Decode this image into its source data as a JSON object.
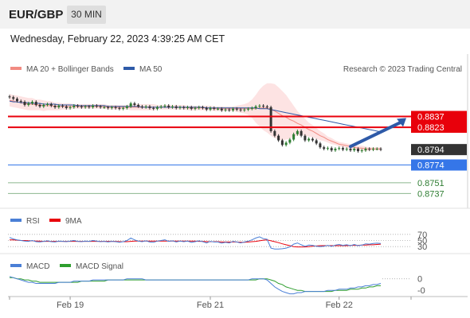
{
  "header": {
    "symbol": "EUR/GBP",
    "timeframe": "30 MIN",
    "datetime": "Wednesday, February 22, 2023 4:39:25 AM CET"
  },
  "credit": "Research © 2023 Trading Central",
  "colors": {
    "bollinger": "#f28b82",
    "bollinger_fill": "#fde3e3",
    "ma50": "#2e5aa8",
    "candle": "#333333",
    "candle_up": "#2e7d32",
    "resistance": "#e8000b",
    "pivot": "#3576e8",
    "support": "#2e7d32",
    "current_bg": "#333333",
    "arrow": "#2e5aa8",
    "rsi": "#4a7fd6",
    "rsi_ma": "#e8000b",
    "macd": "#4a7fd6",
    "macd_signal": "#2e9e2e"
  },
  "chart_data": [
    {
      "type": "line",
      "panel": "price",
      "legend": [
        {
          "name": "MA 20 + Bollinger Bands",
          "color": "#f28b82"
        },
        {
          "name": "MA 50",
          "color": "#2e5aa8"
        }
      ],
      "ylim": [
        0.8725,
        0.8885
      ],
      "x_ticks": [
        "Feb 19",
        "Feb 21",
        "Feb 22"
      ],
      "x_tick_index": [
        16,
        53,
        87
      ],
      "candles_close": [
        0.8862,
        0.886,
        0.8857,
        0.8856,
        0.8852,
        0.8854,
        0.8856,
        0.8852,
        0.885,
        0.8852,
        0.8853,
        0.8851,
        0.8849,
        0.8851,
        0.885,
        0.8848,
        0.8849,
        0.8851,
        0.885,
        0.8849,
        0.885,
        0.8849,
        0.8851,
        0.885,
        0.8849,
        0.8849,
        0.8848,
        0.8849,
        0.8848,
        0.8847,
        0.8848,
        0.885,
        0.8854,
        0.8852,
        0.885,
        0.8849,
        0.885,
        0.8848,
        0.8847,
        0.8849,
        0.885,
        0.8851,
        0.8849,
        0.885,
        0.8848,
        0.8849,
        0.8848,
        0.8849,
        0.8847,
        0.8848,
        0.8849,
        0.8848,
        0.8846,
        0.8848,
        0.8847,
        0.8847,
        0.8845,
        0.8846,
        0.8845,
        0.8847,
        0.8846,
        0.8845,
        0.8846,
        0.8847,
        0.8848,
        0.885,
        0.8851,
        0.885,
        0.8849,
        0.8818,
        0.8812,
        0.8806,
        0.88,
        0.8803,
        0.8807,
        0.8814,
        0.8818,
        0.8812,
        0.8806,
        0.8808,
        0.8806,
        0.8802,
        0.8797,
        0.8795,
        0.8796,
        0.8793,
        0.8795,
        0.8796,
        0.8794,
        0.8795,
        0.8793,
        0.8795,
        0.8792,
        0.8793,
        0.8795,
        0.8794,
        0.8795,
        0.8795,
        0.8794
      ],
      "ma20": [
        0.8858,
        0.8857,
        0.8856,
        0.8855,
        0.8854,
        0.8853,
        0.8853,
        0.8852,
        0.8852,
        0.8851,
        0.8851,
        0.8851,
        0.885,
        0.885,
        0.885,
        0.885,
        0.885,
        0.885,
        0.885,
        0.885,
        0.885,
        0.885,
        0.885,
        0.885,
        0.885,
        0.885,
        0.8849,
        0.8849,
        0.8849,
        0.8849,
        0.8849,
        0.8849,
        0.8849,
        0.8849,
        0.8849,
        0.8849,
        0.8849,
        0.8849,
        0.8849,
        0.8849,
        0.8849,
        0.8849,
        0.8849,
        0.8849,
        0.8849,
        0.8849,
        0.8849,
        0.8848,
        0.8848,
        0.8848,
        0.8848,
        0.8848,
        0.8848,
        0.8848,
        0.8847,
        0.8847,
        0.8847,
        0.8847,
        0.8847,
        0.8847,
        0.8847,
        0.8847,
        0.8847,
        0.8847,
        0.8847,
        0.8847,
        0.8848,
        0.8848,
        0.8848,
        0.8846,
        0.8844,
        0.8841,
        0.8838,
        0.8836,
        0.8833,
        0.8831,
        0.8828,
        0.8826,
        0.8823,
        0.882,
        0.8818,
        0.8815,
        0.8812,
        0.881,
        0.8807,
        0.8805,
        0.8803,
        0.8801,
        0.88,
        0.8799,
        0.8798,
        0.8797,
        0.8796,
        0.8796,
        0.8795,
        0.8795,
        0.8795,
        0.8795,
        0.8795
      ],
      "bb_width": [
        0.0008,
        0.0008,
        0.0008,
        0.0008,
        0.0008,
        0.0008,
        0.0008,
        0.0007,
        0.0007,
        0.0007,
        0.0006,
        0.0006,
        0.0005,
        0.0005,
        0.0004,
        0.0004,
        0.0004,
        0.0003,
        0.0003,
        0.0003,
        0.0003,
        0.0003,
        0.0003,
        0.0003,
        0.0003,
        0.0003,
        0.0003,
        0.0003,
        0.0003,
        0.0003,
        0.0003,
        0.0003,
        0.0004,
        0.0004,
        0.0004,
        0.0004,
        0.0004,
        0.0004,
        0.0004,
        0.0003,
        0.0003,
        0.0003,
        0.0003,
        0.0003,
        0.0003,
        0.0003,
        0.0003,
        0.0003,
        0.0003,
        0.0003,
        0.0003,
        0.0003,
        0.0003,
        0.0003,
        0.0003,
        0.0003,
        0.0003,
        0.0003,
        0.0003,
        0.0003,
        0.0004,
        0.0005,
        0.0006,
        0.0008,
        0.0012,
        0.0018,
        0.0024,
        0.0029,
        0.0032,
        0.0034,
        0.0035,
        0.0034,
        0.0032,
        0.0029,
        0.0025,
        0.002,
        0.0016,
        0.0013,
        0.0011,
        0.0009,
        0.0008,
        0.0007,
        0.0006,
        0.0005,
        0.0004,
        0.0004,
        0.0003,
        0.0003,
        0.0003,
        0.0003,
        0.0003,
        0.0003,
        0.0003,
        0.0003,
        0.0003,
        0.0002,
        0.0002,
        0.0002,
        0.0002
      ],
      "ma50": [
        0.8857,
        0.8856,
        0.8856,
        0.8855,
        0.8855,
        0.8855,
        0.8854,
        0.8854,
        0.8854,
        0.8853,
        0.8853,
        0.8853,
        0.8853,
        0.8852,
        0.8852,
        0.8852,
        0.8852,
        0.8852,
        0.8851,
        0.8851,
        0.8851,
        0.8851,
        0.8851,
        0.8851,
        0.8851,
        0.8851,
        0.885,
        0.885,
        0.885,
        0.885,
        0.885,
        0.885,
        0.885,
        0.885,
        0.885,
        0.8849,
        0.8849,
        0.8849,
        0.8849,
        0.8849,
        0.8849,
        0.8849,
        0.8849,
        0.8849,
        0.8849,
        0.8849,
        0.8849,
        0.8849,
        0.8849,
        0.8849,
        0.8849,
        0.8849,
        0.8848,
        0.8848,
        0.8848,
        0.8848,
        0.8848,
        0.8848,
        0.8848,
        0.8848,
        0.8848,
        0.8848,
        0.8848,
        0.8848,
        0.8848,
        0.8848,
        0.8847,
        0.8847,
        0.8847,
        0.8846,
        0.8845,
        0.8844,
        0.8843,
        0.8842,
        0.8841,
        0.884,
        0.8839,
        0.8838,
        0.8837,
        0.8836,
        0.8835,
        0.8834,
        0.8833,
        0.8832,
        0.8831,
        0.883,
        0.8829,
        0.8828,
        0.8827,
        0.8826,
        0.8825,
        0.8824,
        0.8823,
        0.8822,
        0.8821,
        0.882,
        0.8819,
        0.8818,
        0.8817
      ],
      "levels": [
        {
          "value": 0.8837,
          "label": "0.8837",
          "kind": "resistance"
        },
        {
          "value": 0.8823,
          "label": "0.8823",
          "kind": "resistance"
        },
        {
          "value": 0.8794,
          "label": "0.8794",
          "kind": "current"
        },
        {
          "value": 0.8774,
          "label": "0.8774",
          "kind": "pivot"
        },
        {
          "value": 0.8751,
          "label": "0.8751",
          "kind": "support"
        },
        {
          "value": 0.8737,
          "label": "0.8737",
          "kind": "support"
        }
      ],
      "arrow": {
        "from_index": 90,
        "from_value": 0.8798,
        "to_index": 98,
        "to_value": 0.8835,
        "direction": "up"
      }
    },
    {
      "type": "line",
      "panel": "rsi",
      "legend": [
        {
          "name": "RSI",
          "color": "#4a7fd6"
        },
        {
          "name": "9MA",
          "color": "#e8000b"
        }
      ],
      "ylim": [
        20,
        80
      ],
      "ticks": [
        70,
        50,
        30
      ],
      "tick_labels": [
        "70",
        "50",
        "30"
      ],
      "rsi": [
        60,
        55,
        52,
        50,
        48,
        47,
        50,
        46,
        45,
        47,
        49,
        46,
        45,
        48,
        47,
        46,
        48,
        50,
        47,
        46,
        48,
        47,
        50,
        48,
        46,
        47,
        45,
        47,
        46,
        44,
        46,
        50,
        58,
        52,
        48,
        46,
        49,
        45,
        44,
        48,
        50,
        52,
        47,
        49,
        45,
        48,
        46,
        48,
        44,
        46,
        49,
        46,
        42,
        47,
        45,
        45,
        41,
        44,
        42,
        47,
        45,
        42,
        45,
        48,
        52,
        58,
        62,
        56,
        54,
        25,
        22,
        22,
        23,
        25,
        29,
        38,
        42,
        36,
        31,
        35,
        34,
        31,
        30,
        31,
        34,
        31,
        35,
        37,
        34,
        36,
        33,
        37,
        33,
        35,
        39,
        38,
        40,
        41,
        40
      ],
      "ma9": [
        52,
        52,
        51,
        50,
        50,
        49,
        49,
        48,
        48,
        47,
        47,
        47,
        47,
        47,
        47,
        47,
        47,
        47,
        47,
        47,
        47,
        47,
        47,
        47,
        47,
        47,
        47,
        47,
        47,
        46,
        46,
        46,
        47,
        48,
        48,
        48,
        48,
        48,
        48,
        48,
        48,
        48,
        48,
        48,
        48,
        48,
        48,
        48,
        48,
        48,
        47,
        47,
        46,
        46,
        46,
        46,
        45,
        45,
        45,
        45,
        45,
        44,
        44,
        45,
        46,
        47,
        49,
        51,
        52,
        49,
        46,
        43,
        39,
        36,
        33,
        30,
        29,
        29,
        29,
        30,
        31,
        32,
        33,
        33,
        33,
        33,
        33,
        33,
        33,
        33,
        34,
        34,
        34,
        35,
        35,
        36,
        36,
        37,
        38
      ]
    },
    {
      "type": "line",
      "panel": "macd",
      "legend": [
        {
          "name": "MACD",
          "color": "#4a7fd6"
        },
        {
          "name": "MACD Signal",
          "color": "#2e9e2e"
        }
      ],
      "ylim": [
        -0.0014,
        0.0006
      ],
      "ticks": [
        0,
        -0.001
      ],
      "tick_labels": [
        "0",
        "-0"
      ],
      "macd": [
        0.0002,
        0.0001,
        0.0,
        -0.0001,
        -0.0002,
        -0.0003,
        -0.0003,
        -0.0004,
        -0.0004,
        -0.0004,
        -0.0004,
        -0.0004,
        -0.0004,
        -0.0003,
        -0.0003,
        -0.0003,
        -0.0003,
        -0.0002,
        -0.0002,
        -0.0002,
        -0.0002,
        -0.0002,
        -0.0001,
        -0.0001,
        -0.0001,
        -0.0001,
        -0.0001,
        -0.0001,
        -0.0001,
        -0.0001,
        -0.0001,
        0.0,
        0.0,
        0.0,
        0.0,
        0.0,
        -0.0001,
        -0.0001,
        -0.0001,
        -0.0001,
        -0.0001,
        -0.0001,
        -0.0001,
        -0.0001,
        -0.0001,
        -0.0001,
        -0.0001,
        -0.0001,
        -0.0001,
        -0.0001,
        -0.0001,
        -0.0001,
        -0.0001,
        -0.0001,
        -0.0001,
        -0.0001,
        -0.0001,
        -0.0001,
        -0.0001,
        -0.0001,
        -0.0001,
        -0.0001,
        -0.0001,
        -0.0001,
        0.0,
        0.0,
        0.0,
        0.0,
        -0.0001,
        -0.0004,
        -0.0007,
        -0.0009,
        -0.0011,
        -0.0012,
        -0.0013,
        -0.0013,
        -0.0012,
        -0.0012,
        -0.0011,
        -0.0011,
        -0.0011,
        -0.0011,
        -0.0011,
        -0.0011,
        -0.001,
        -0.001,
        -0.001,
        -0.0009,
        -0.0009,
        -0.0009,
        -0.0008,
        -0.0008,
        -0.0007,
        -0.0007,
        -0.0006,
        -0.0006,
        -0.0005,
        -0.0005,
        -0.0004
      ],
      "signal": [
        0.0001,
        0.0001,
        0.0,
        0.0,
        -0.0001,
        -0.0001,
        -0.0002,
        -0.0002,
        -0.0003,
        -0.0003,
        -0.0003,
        -0.0003,
        -0.0003,
        -0.0003,
        -0.0003,
        -0.0003,
        -0.0003,
        -0.0003,
        -0.0003,
        -0.0002,
        -0.0002,
        -0.0002,
        -0.0002,
        -0.0002,
        -0.0002,
        -0.0002,
        -0.0001,
        -0.0001,
        -0.0001,
        -0.0001,
        -0.0001,
        -0.0001,
        -0.0001,
        -0.0001,
        -0.0001,
        -0.0001,
        -0.0001,
        -0.0001,
        -0.0001,
        -0.0001,
        -0.0001,
        -0.0001,
        -0.0001,
        -0.0001,
        -0.0001,
        -0.0001,
        -0.0001,
        -0.0001,
        -0.0001,
        -0.0001,
        -0.0001,
        -0.0001,
        -0.0001,
        -0.0001,
        -0.0001,
        -0.0001,
        -0.0001,
        -0.0001,
        -0.0001,
        -0.0001,
        -0.0001,
        -0.0001,
        -0.0001,
        -0.0001,
        -0.0001,
        -0.0001,
        0.0,
        0.0,
        0.0,
        -0.0001,
        -0.0002,
        -0.0004,
        -0.0005,
        -0.0007,
        -0.0008,
        -0.0009,
        -0.001,
        -0.001,
        -0.0011,
        -0.0011,
        -0.0011,
        -0.0011,
        -0.0011,
        -0.0011,
        -0.0011,
        -0.0011,
        -0.001,
        -0.001,
        -0.001,
        -0.001,
        -0.0009,
        -0.0009,
        -0.0009,
        -0.0008,
        -0.0008,
        -0.0007,
        -0.0007,
        -0.0006,
        -0.0006
      ]
    }
  ]
}
